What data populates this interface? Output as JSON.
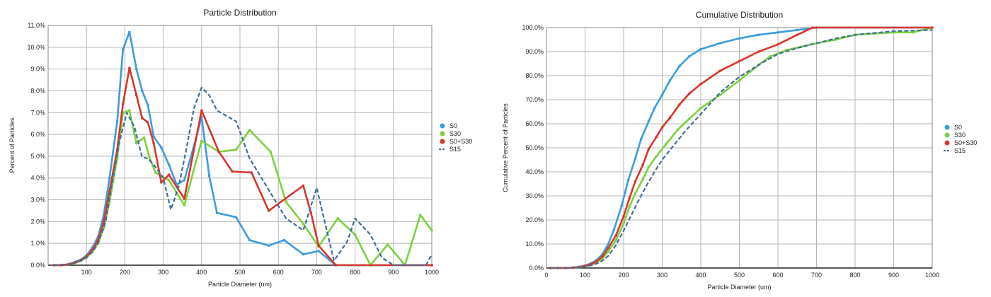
{
  "chart_data": [
    {
      "type": "line",
      "title": "Particle Distribution",
      "xlabel": "Particle Diameter (um)",
      "ylabel": "Percent of Particles",
      "xlim": [
        0,
        1000
      ],
      "ylim": [
        0,
        11
      ],
      "x_ticks": [
        "100",
        "200",
        "300",
        "400",
        "500",
        "600",
        "700",
        "800",
        "900",
        "1000"
      ],
      "y_ticks": [
        "0.0%",
        "1.0%",
        "2.0%",
        "3.0%",
        "4.0%",
        "5.0%",
        "6.0%",
        "7.0%",
        "8.0%",
        "9.0%",
        "10.0%",
        "11.0%"
      ],
      "grid": true,
      "legend_position": "right",
      "series": [
        {
          "name": "S0",
          "color": "#3b9ddd",
          "style": "solid-markers",
          "points": [
            [
              15,
              0
            ],
            [
              35,
              0
            ],
            [
              55,
              0.05
            ],
            [
              70,
              0.15
            ],
            [
              85,
              0.25
            ],
            [
              100,
              0.45
            ],
            [
              115,
              0.8
            ],
            [
              130,
              1.3
            ],
            [
              145,
              2.3
            ],
            [
              160,
              4.0
            ],
            [
              180,
              6.6
            ],
            [
              195,
              9.9
            ],
            [
              212,
              10.7
            ],
            [
              230,
              9.0
            ],
            [
              245,
              8.0
            ],
            [
              260,
              7.35
            ],
            [
              275,
              5.9
            ],
            [
              295,
              5.4
            ],
            [
              315,
              4.6
            ],
            [
              335,
              3.7
            ],
            [
              355,
              3.9
            ],
            [
              385,
              5.8
            ],
            [
              400,
              6.8
            ],
            [
              420,
              4.1
            ],
            [
              440,
              2.4
            ],
            [
              490,
              2.2
            ],
            [
              525,
              1.15
            ],
            [
              575,
              0.9
            ],
            [
              615,
              1.15
            ],
            [
              665,
              0.5
            ],
            [
              705,
              0.65
            ],
            [
              750,
              0
            ],
            [
              1000,
              0
            ]
          ]
        },
        {
          "name": "S30",
          "color": "#7dd13f",
          "style": "solid-markers",
          "points": [
            [
              15,
              0
            ],
            [
              35,
              0
            ],
            [
              55,
              0.05
            ],
            [
              70,
              0.1
            ],
            [
              85,
              0.2
            ],
            [
              100,
              0.35
            ],
            [
              115,
              0.6
            ],
            [
              130,
              1.0
            ],
            [
              145,
              1.7
            ],
            [
              160,
              2.9
            ],
            [
              180,
              4.9
            ],
            [
              195,
              7.0
            ],
            [
              212,
              7.1
            ],
            [
              230,
              5.6
            ],
            [
              250,
              5.85
            ],
            [
              265,
              4.9
            ],
            [
              280,
              4.25
            ],
            [
              315,
              3.9
            ],
            [
              355,
              2.75
            ],
            [
              400,
              5.7
            ],
            [
              445,
              5.2
            ],
            [
              490,
              5.3
            ],
            [
              525,
              6.2
            ],
            [
              580,
              5.2
            ],
            [
              620,
              2.9
            ],
            [
              665,
              1.9
            ],
            [
              705,
              0.85
            ],
            [
              755,
              2.15
            ],
            [
              800,
              1.4
            ],
            [
              840,
              0
            ],
            [
              885,
              0.95
            ],
            [
              930,
              0
            ],
            [
              970,
              2.3
            ],
            [
              1000,
              1.6
            ]
          ]
        },
        {
          "name": "S0+S30",
          "color": "#d9352b",
          "style": "solid-markers",
          "points": [
            [
              15,
              0
            ],
            [
              35,
              0
            ],
            [
              55,
              0.05
            ],
            [
              70,
              0.12
            ],
            [
              85,
              0.22
            ],
            [
              100,
              0.4
            ],
            [
              115,
              0.7
            ],
            [
              130,
              1.15
            ],
            [
              145,
              2.0
            ],
            [
              160,
              3.4
            ],
            [
              180,
              5.3
            ],
            [
              195,
              7.4
            ],
            [
              212,
              9.05
            ],
            [
              230,
              7.8
            ],
            [
              245,
              6.75
            ],
            [
              260,
              6.55
            ],
            [
              275,
              5.6
            ],
            [
              295,
              3.8
            ],
            [
              315,
              4.15
            ],
            [
              335,
              3.6
            ],
            [
              355,
              3.05
            ],
            [
              400,
              7.1
            ],
            [
              445,
              5.2
            ],
            [
              480,
              4.3
            ],
            [
              530,
              4.25
            ],
            [
              575,
              2.5
            ],
            [
              665,
              3.65
            ],
            [
              685,
              2.4
            ],
            [
              705,
              0.9
            ],
            [
              750,
              0
            ],
            [
              1000,
              0
            ]
          ]
        },
        {
          "name": "S15",
          "color": "#3f6e9c",
          "style": "dashed",
          "points": [
            [
              15,
              0
            ],
            [
              55,
              0.05
            ],
            [
              85,
              0.2
            ],
            [
              100,
              0.35
            ],
            [
              115,
              0.6
            ],
            [
              130,
              1.0
            ],
            [
              150,
              2.0
            ],
            [
              165,
              3.6
            ],
            [
              185,
              5.6
            ],
            [
              205,
              7.0
            ],
            [
              225,
              6.35
            ],
            [
              245,
              4.95
            ],
            [
              260,
              4.9
            ],
            [
              280,
              4.5
            ],
            [
              300,
              4.0
            ],
            [
              320,
              2.55
            ],
            [
              340,
              3.6
            ],
            [
              360,
              5.3
            ],
            [
              380,
              7.2
            ],
            [
              400,
              8.15
            ],
            [
              420,
              7.8
            ],
            [
              440,
              7.1
            ],
            [
              470,
              6.8
            ],
            [
              490,
              6.6
            ],
            [
              525,
              4.9
            ],
            [
              570,
              3.6
            ],
            [
              620,
              2.15
            ],
            [
              665,
              1.6
            ],
            [
              700,
              3.55
            ],
            [
              745,
              0.2
            ],
            [
              780,
              1.1
            ],
            [
              800,
              2.15
            ],
            [
              840,
              1.4
            ],
            [
              870,
              0.35
            ],
            [
              900,
              0
            ],
            [
              985,
              0
            ],
            [
              1000,
              0.5
            ]
          ]
        }
      ]
    },
    {
      "type": "line",
      "title": "Cumulative Distribution",
      "xlabel": "Particle Diameter (um)",
      "ylabel": "Cumulative Percent of Particles",
      "xlim": [
        0,
        1000
      ],
      "ylim": [
        0,
        100
      ],
      "x_ticks": [
        "0",
        "100",
        "200",
        "300",
        "400",
        "500",
        "600",
        "700",
        "800",
        "900",
        "1000"
      ],
      "y_ticks": [
        "0.0%",
        "10.0%",
        "20.0%",
        "30.0%",
        "40.0%",
        "50.0%",
        "60.0%",
        "70.0%",
        "80.0%",
        "90.0%",
        "100.0%"
      ],
      "grid": true,
      "legend_position": "right",
      "series": [
        {
          "name": "S0",
          "color": "#3b9ddd",
          "style": "solid-markers",
          "points": [
            [
              10,
              0
            ],
            [
              30,
              0
            ],
            [
              50,
              0
            ],
            [
              70,
              0.2
            ],
            [
              85,
              0.5
            ],
            [
              100,
              1.0
            ],
            [
              115,
              1.9
            ],
            [
              130,
              3.3
            ],
            [
              145,
              5.7
            ],
            [
              160,
              9.9
            ],
            [
              175,
              16.0
            ],
            [
              195,
              26.0
            ],
            [
              212,
              36.5
            ],
            [
              230,
              45.5
            ],
            [
              245,
              53.5
            ],
            [
              265,
              61.0
            ],
            [
              280,
              66.5
            ],
            [
              300,
              72.0
            ],
            [
              320,
              78.0
            ],
            [
              345,
              84.0
            ],
            [
              370,
              88.0
            ],
            [
              400,
              91.0
            ],
            [
              450,
              93.5
            ],
            [
              500,
              95.5
            ],
            [
              550,
              97.0
            ],
            [
              600,
              98.0
            ],
            [
              650,
              99.0
            ],
            [
              700,
              100
            ],
            [
              1000,
              100
            ]
          ]
        },
        {
          "name": "S30",
          "color": "#7dd13f",
          "style": "solid-markers",
          "points": [
            [
              10,
              0
            ],
            [
              30,
              0
            ],
            [
              50,
              0
            ],
            [
              70,
              0.1
            ],
            [
              85,
              0.3
            ],
            [
              100,
              0.7
            ],
            [
              115,
              1.3
            ],
            [
              130,
              2.3
            ],
            [
              145,
              4.0
            ],
            [
              160,
              6.8
            ],
            [
              180,
              11.5
            ],
            [
              200,
              18.5
            ],
            [
              215,
              25.5
            ],
            [
              230,
              31.0
            ],
            [
              250,
              37.0
            ],
            [
              265,
              42.0
            ],
            [
              285,
              46.5
            ],
            [
              310,
              51.5
            ],
            [
              340,
              57.5
            ],
            [
              370,
              62.0
            ],
            [
              400,
              66.5
            ],
            [
              450,
              72.0
            ],
            [
              500,
              78.0
            ],
            [
              550,
              84.5
            ],
            [
              580,
              88.0
            ],
            [
              620,
              90.5
            ],
            [
              660,
              92.0
            ],
            [
              700,
              93.5
            ],
            [
              750,
              95.0
            ],
            [
              800,
              97.0
            ],
            [
              850,
              97.5
            ],
            [
              900,
              98.0
            ],
            [
              950,
              98.0
            ],
            [
              1000,
              100
            ]
          ]
        },
        {
          "name": "S0+S30",
          "color": "#d9352b",
          "style": "solid-markers",
          "points": [
            [
              10,
              0
            ],
            [
              30,
              0
            ],
            [
              50,
              0
            ],
            [
              70,
              0.15
            ],
            [
              85,
              0.4
            ],
            [
              100,
              0.85
            ],
            [
              115,
              1.6
            ],
            [
              130,
              2.8
            ],
            [
              145,
              4.8
            ],
            [
              160,
              8.3
            ],
            [
              180,
              13.5
            ],
            [
              200,
              21.5
            ],
            [
              215,
              29.0
            ],
            [
              230,
              36.0
            ],
            [
              250,
              43.0
            ],
            [
              265,
              49.5
            ],
            [
              285,
              54.5
            ],
            [
              300,
              58.5
            ],
            [
              320,
              62.5
            ],
            [
              345,
              68.0
            ],
            [
              370,
              72.5
            ],
            [
              400,
              76.5
            ],
            [
              450,
              82.0
            ],
            [
              500,
              86.0
            ],
            [
              550,
              90.0
            ],
            [
              600,
              93.0
            ],
            [
              650,
              97.0
            ],
            [
              690,
              100
            ],
            [
              1000,
              100
            ]
          ]
        },
        {
          "name": "S15",
          "color": "#3f6e9c",
          "style": "dashed",
          "points": [
            [
              10,
              0
            ],
            [
              50,
              0
            ],
            [
              85,
              0.3
            ],
            [
              100,
              0.6
            ],
            [
              120,
              1.2
            ],
            [
              140,
              2.5
            ],
            [
              160,
              5.0
            ],
            [
              180,
              9.5
            ],
            [
              200,
              15.5
            ],
            [
              220,
              22.0
            ],
            [
              240,
              28.5
            ],
            [
              260,
              34.5
            ],
            [
              280,
              40.0
            ],
            [
              300,
              45.0
            ],
            [
              330,
              51.0
            ],
            [
              360,
              57.0
            ],
            [
              400,
              64.0
            ],
            [
              450,
              73.0
            ],
            [
              500,
              79.5
            ],
            [
              550,
              84.5
            ],
            [
              600,
              89.0
            ],
            [
              650,
              91.5
            ],
            [
              700,
              93.5
            ],
            [
              750,
              95.5
            ],
            [
              800,
              97.0
            ],
            [
              900,
              98.5
            ],
            [
              1000,
              99.0
            ]
          ]
        }
      ]
    }
  ]
}
